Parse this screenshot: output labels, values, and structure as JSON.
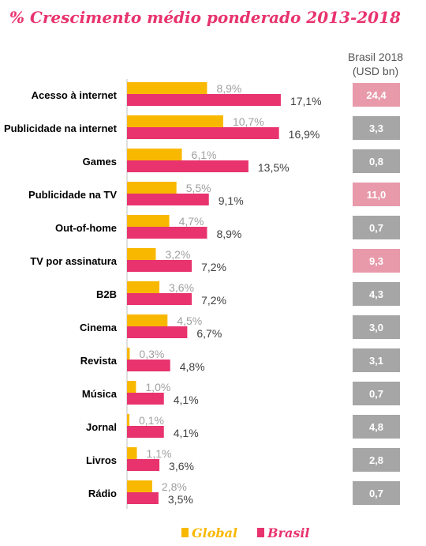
{
  "chart_data": {
    "type": "bar",
    "title": "% Crescimento médio ponderado 2013-2018",
    "categories": [
      "Acesso à internet",
      "Publicidade na internet",
      "Games",
      "Publicidade na TV",
      "Out-of-home",
      "TV por assinatura",
      "B2B",
      "Cinema",
      "Revista",
      "Música",
      "Jornal",
      "Livros",
      "Rádio"
    ],
    "series": [
      {
        "name": "Global",
        "color": "#f9b800",
        "values": [
          8.9,
          10.7,
          6.1,
          5.5,
          4.7,
          3.2,
          3.6,
          4.5,
          0.3,
          1.0,
          0.1,
          1.1,
          2.8
        ],
        "labels": [
          "8,9%",
          "10,7%",
          "6,1%",
          "5,5%",
          "4,7%",
          "3,2%",
          "3,6%",
          "4,5%",
          "0,3%",
          "1,0%",
          "0,1%",
          "1,1%",
          "2,8%"
        ]
      },
      {
        "name": "Brasil",
        "color": "#e8336e",
        "values": [
          17.1,
          16.9,
          13.5,
          9.1,
          8.9,
          7.2,
          7.2,
          6.7,
          4.8,
          4.1,
          4.1,
          3.6,
          3.5
        ],
        "labels": [
          "17,1%",
          "16,9%",
          "13,5%",
          "9,1%",
          "8,9%",
          "7,2%",
          "7,2%",
          "6,7%",
          "4,8%",
          "4,1%",
          "4,1%",
          "3,6%",
          "3,5%"
        ]
      }
    ],
    "brasil_2018": {
      "header_line1": "Brasil 2018",
      "header_line2": "(USD bn)",
      "values": [
        "24,4",
        "3,3",
        "0,8",
        "11,0",
        "0,7",
        "9,3",
        "4,3",
        "3,0",
        "3,1",
        "0,7",
        "4,8",
        "2,8",
        "0,7"
      ],
      "highlight": [
        true,
        false,
        false,
        true,
        false,
        true,
        false,
        false,
        false,
        false,
        false,
        false,
        false
      ],
      "highlight_color": "#e89aaa",
      "default_color": "#a6a6a6"
    },
    "legend": {
      "position": "bottom"
    },
    "xlim": [
      0,
      20
    ],
    "grid": false
  }
}
